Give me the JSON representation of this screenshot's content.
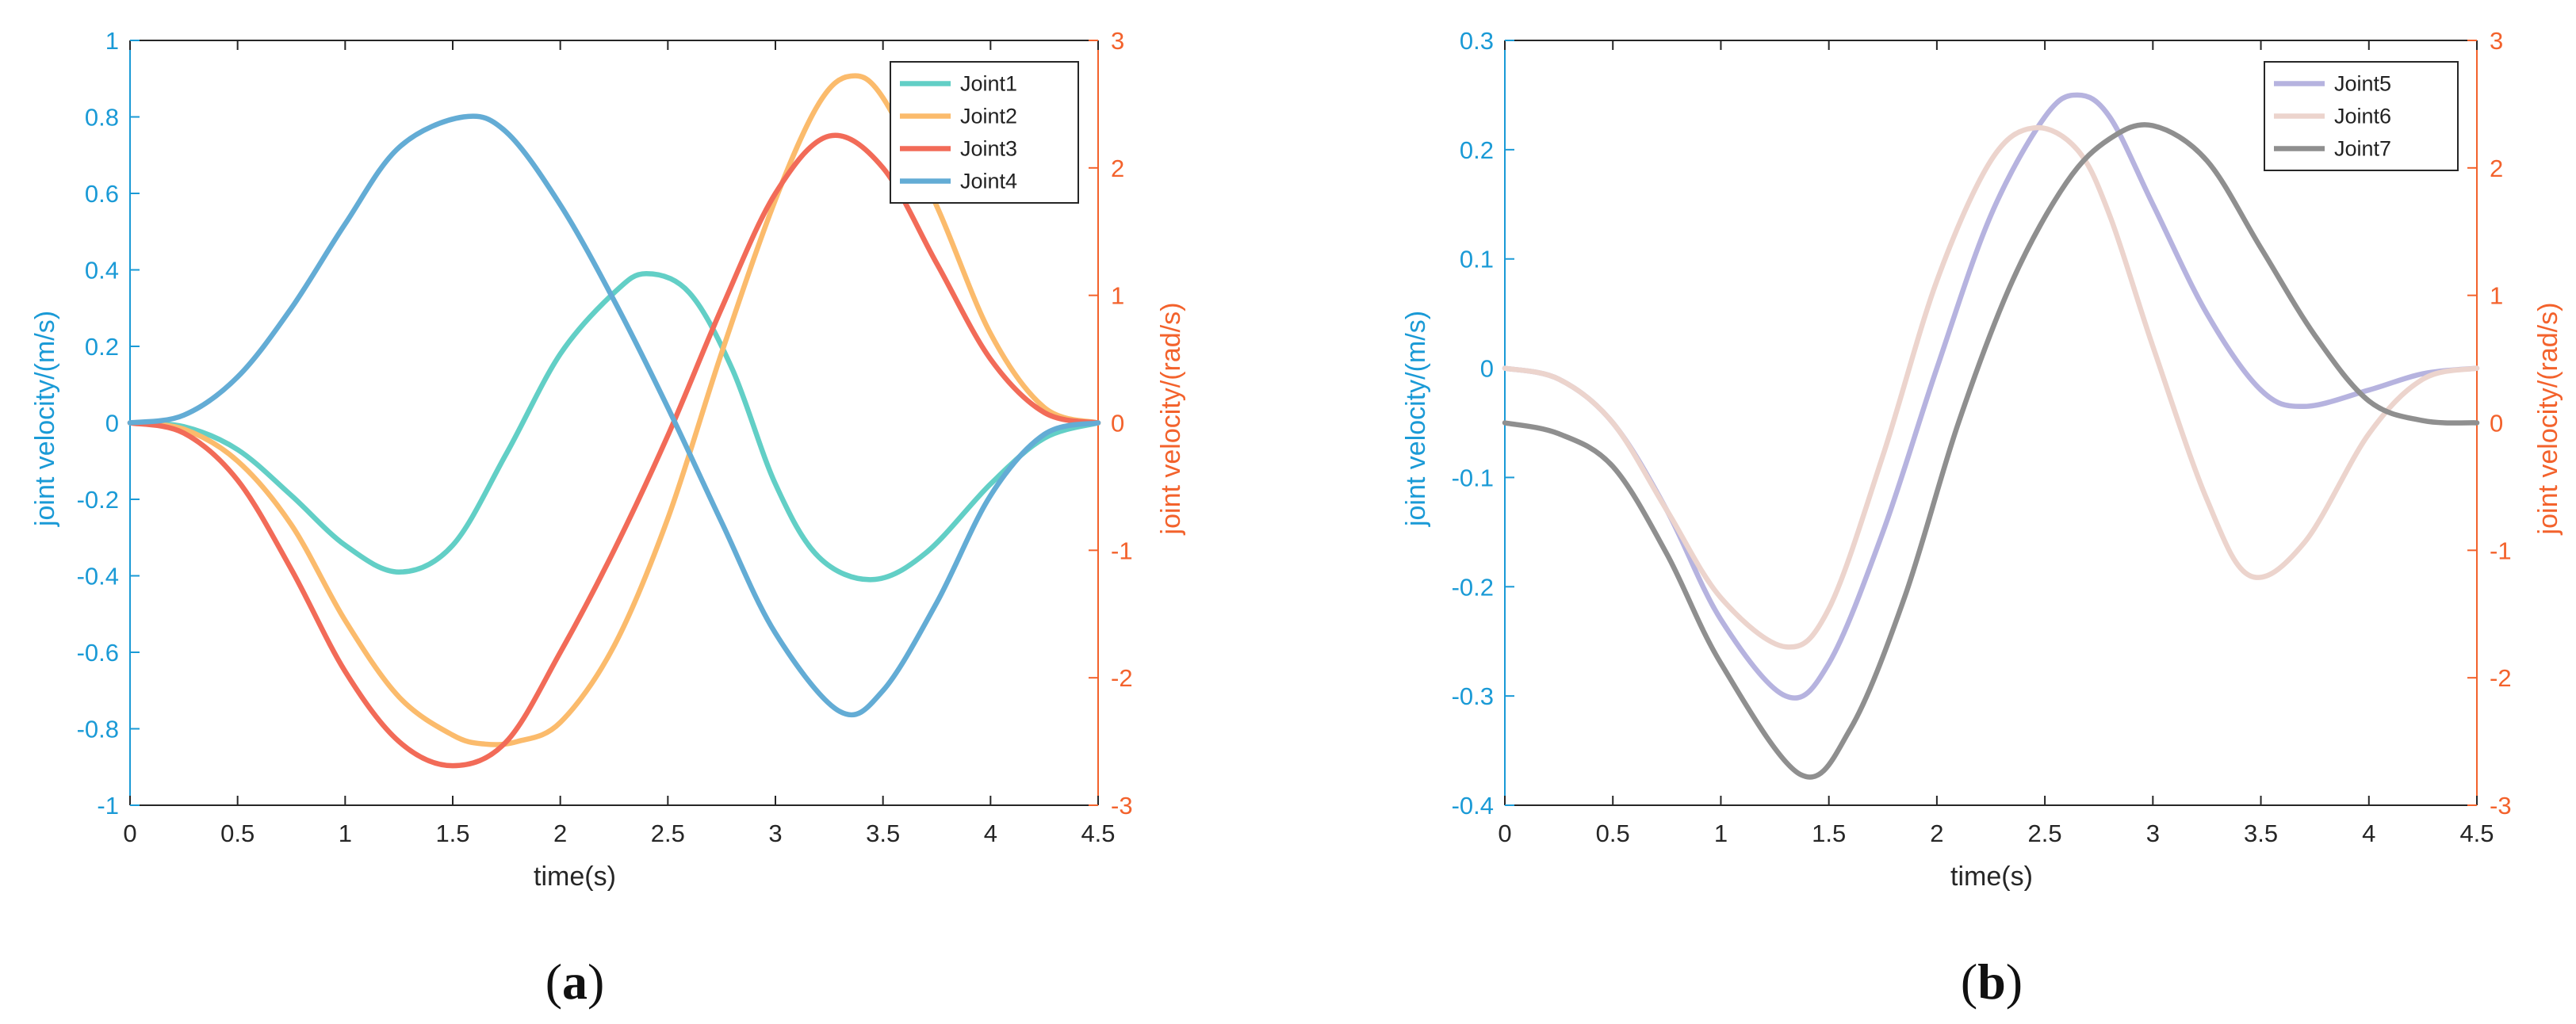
{
  "colors": {
    "left_axis": "#1a9ad6",
    "right_axis": "#f3622c",
    "axis": "#262626",
    "Joint1": "#62cfc6",
    "Joint2": "#fbbb6c",
    "Joint3": "#f26b58",
    "Joint4": "#63acd5",
    "Joint5": "#b6b3df",
    "Joint6": "#ecd4cd",
    "Joint7": "#8f8f8f"
  },
  "chart_data": [
    {
      "type": "line",
      "panel": "a",
      "caption": {
        "open": "(",
        "letter": "a",
        "close": ")"
      },
      "xlabel": "time(s)",
      "ylabel_left": "joint velocity/(m/s)",
      "ylabel_right": "joint velocity/(rad/s)",
      "xlim": [
        0,
        4.5
      ],
      "ylim_left": [
        -1,
        1
      ],
      "ylim_right": [
        -3,
        3
      ],
      "x_ticks": [
        "0",
        "0.5",
        "1",
        "1.5",
        "2",
        "2.5",
        "3",
        "3.5",
        "4",
        "4.5"
      ],
      "y_ticks_left": [
        "-1",
        "-0.8",
        "-0.6",
        "-0.4",
        "-0.2",
        "0",
        "0.2",
        "0.4",
        "0.6",
        "0.8",
        "1"
      ],
      "y_ticks_right": [
        "-3",
        "-2",
        "-1",
        "0",
        "1",
        "2",
        "3"
      ],
      "legend_position": "top-right",
      "series": [
        {
          "name": "Joint1",
          "axis": "left",
          "x": [
            0,
            0.25,
            0.5,
            0.75,
            1.0,
            1.25,
            1.5,
            1.75,
            2.0,
            2.25,
            2.4,
            2.6,
            2.8,
            3.0,
            3.2,
            3.45,
            3.7,
            4.0,
            4.25,
            4.5
          ],
          "y": [
            0,
            -0.01,
            -0.07,
            -0.19,
            -0.32,
            -0.39,
            -0.32,
            -0.08,
            0.18,
            0.34,
            0.39,
            0.34,
            0.14,
            -0.16,
            -0.35,
            -0.41,
            -0.34,
            -0.16,
            -0.04,
            0
          ]
        },
        {
          "name": "Joint2",
          "axis": "right",
          "x": [
            0,
            0.25,
            0.5,
            0.75,
            1.0,
            1.25,
            1.5,
            1.65,
            1.8,
            2.0,
            2.25,
            2.5,
            2.75,
            3.0,
            3.2,
            3.35,
            3.5,
            3.75,
            4.0,
            4.25,
            4.5
          ],
          "y": [
            0,
            -0.05,
            -0.3,
            -0.8,
            -1.55,
            -2.15,
            -2.45,
            -2.52,
            -2.5,
            -2.35,
            -1.75,
            -0.75,
            0.55,
            1.75,
            2.5,
            2.72,
            2.55,
            1.7,
            0.7,
            0.12,
            0
          ]
        },
        {
          "name": "Joint3",
          "axis": "right",
          "x": [
            0,
            0.25,
            0.5,
            0.75,
            1.0,
            1.25,
            1.5,
            1.75,
            2.0,
            2.25,
            2.5,
            2.75,
            3.0,
            3.25,
            3.5,
            3.75,
            4.0,
            4.25,
            4.5
          ],
          "y": [
            0,
            -0.08,
            -0.45,
            -1.15,
            -1.95,
            -2.5,
            -2.69,
            -2.5,
            -1.8,
            -1.0,
            -0.1,
            0.9,
            1.8,
            2.25,
            2.0,
            1.25,
            0.5,
            0.08,
            0
          ]
        },
        {
          "name": "Joint4",
          "axis": "left",
          "x": [
            0,
            0.25,
            0.5,
            0.75,
            1.0,
            1.25,
            1.55,
            1.75,
            2.0,
            2.25,
            2.5,
            2.75,
            3.0,
            3.3,
            3.5,
            3.75,
            4.0,
            4.25,
            4.5
          ],
          "y": [
            0,
            0.02,
            0.12,
            0.3,
            0.52,
            0.72,
            0.8,
            0.76,
            0.57,
            0.32,
            0.04,
            -0.26,
            -0.55,
            -0.755,
            -0.7,
            -0.47,
            -0.19,
            -0.03,
            0
          ]
        }
      ]
    },
    {
      "type": "line",
      "panel": "b",
      "caption": {
        "open": "(",
        "letter": "b",
        "close": ")"
      },
      "xlabel": "time(s)",
      "ylabel_left": "joint velocity/(m/s)",
      "ylabel_right": "joint velocity/(rad/s)",
      "xlim": [
        0,
        4.5
      ],
      "ylim_left": [
        -0.4,
        0.3
      ],
      "ylim_right": [
        -3,
        3
      ],
      "x_ticks": [
        "0",
        "0.5",
        "1",
        "1.5",
        "2",
        "2.5",
        "3",
        "3.5",
        "4",
        "4.5"
      ],
      "y_ticks_left": [
        "-0.4",
        "-0.3",
        "-0.2",
        "-0.1",
        "0",
        "0.1",
        "0.2",
        "0.3"
      ],
      "y_ticks_right": [
        "-3",
        "-2",
        "-1",
        "0",
        "1",
        "2",
        "3"
      ],
      "legend_position": "top-right",
      "series": [
        {
          "name": "Joint5",
          "axis": "left",
          "x": [
            0,
            0.25,
            0.5,
            0.75,
            1.0,
            1.3,
            1.5,
            1.75,
            2.0,
            2.25,
            2.5,
            2.65,
            2.8,
            3.0,
            3.25,
            3.5,
            3.7,
            4.0,
            4.25,
            4.5
          ],
          "y": [
            0,
            -0.01,
            -0.05,
            -0.13,
            -0.23,
            -0.3,
            -0.27,
            -0.15,
            0.0,
            0.14,
            0.23,
            0.25,
            0.23,
            0.15,
            0.05,
            -0.02,
            -0.035,
            -0.02,
            -0.005,
            0
          ]
        },
        {
          "name": "Joint6",
          "axis": "left",
          "x": [
            0,
            0.25,
            0.5,
            0.75,
            1.0,
            1.3,
            1.5,
            1.75,
            2.0,
            2.25,
            2.45,
            2.65,
            2.8,
            3.0,
            3.25,
            3.45,
            3.7,
            4.0,
            4.25,
            4.5
          ],
          "y": [
            0,
            -0.01,
            -0.05,
            -0.13,
            -0.21,
            -0.255,
            -0.22,
            -0.08,
            0.08,
            0.19,
            0.22,
            0.2,
            0.14,
            0.02,
            -0.12,
            -0.19,
            -0.16,
            -0.06,
            -0.01,
            0
          ]
        },
        {
          "name": "Joint7",
          "axis": "left",
          "x": [
            0,
            0.25,
            0.5,
            0.75,
            1.0,
            1.37,
            1.6,
            1.85,
            2.1,
            2.35,
            2.6,
            2.8,
            3.0,
            3.25,
            3.5,
            3.75,
            4.0,
            4.25,
            4.5
          ],
          "y": [
            -0.05,
            -0.06,
            -0.09,
            -0.17,
            -0.27,
            -0.372,
            -0.33,
            -0.21,
            -0.05,
            0.08,
            0.17,
            0.21,
            0.222,
            0.19,
            0.11,
            0.03,
            -0.03,
            -0.048,
            -0.05
          ]
        }
      ]
    }
  ]
}
